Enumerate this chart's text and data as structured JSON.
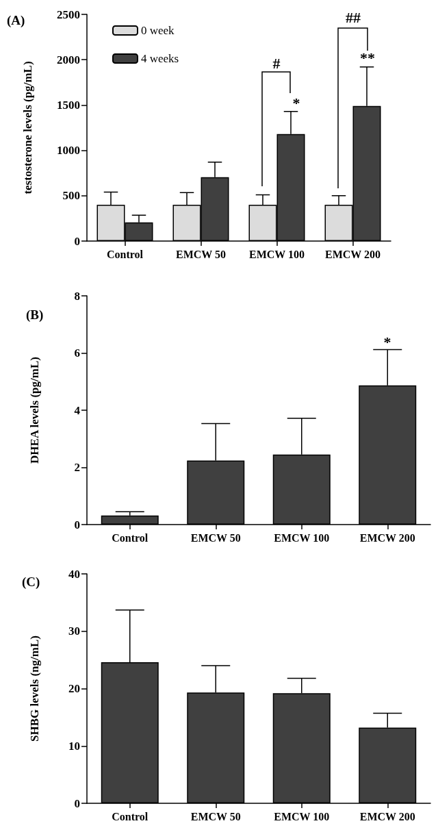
{
  "chart_data": [
    {
      "type": "bar",
      "ylabel": "testosterone levels (pg/mL)",
      "categories": [
        "Control",
        "EMCW 50",
        "EMCW 100",
        "EMCW 200"
      ],
      "series": [
        {
          "name": "0 week",
          "color": "#dcdcdc",
          "values": [
            400,
            400,
            400,
            400
          ],
          "errors": [
            140,
            135,
            110,
            100
          ]
        },
        {
          "name": "4 weeks",
          "color": "#404040",
          "values": [
            205,
            705,
            1180,
            1490
          ],
          "errors": [
            80,
            165,
            250,
            430
          ]
        }
      ],
      "ylim": [
        0,
        2500
      ],
      "yticks": [
        0,
        500,
        1000,
        1500,
        2000,
        2500
      ],
      "grid": false,
      "legend": "top left",
      "annotations": [
        "(A)",
        "#",
        "*",
        "##",
        "**"
      ]
    },
    {
      "type": "bar",
      "ylabel": "DHEA levels (pg/mL)",
      "categories": [
        "Control",
        "EMCW 50",
        "EMCW 100",
        "EMCW 200"
      ],
      "values": [
        0.32,
        2.24,
        2.45,
        4.87
      ],
      "errors": [
        0.13,
        1.29,
        1.27,
        1.25
      ],
      "color": "#404040",
      "ylim": [
        0,
        8
      ],
      "yticks": [
        0,
        2,
        4,
        6,
        8
      ],
      "grid": false,
      "annotations": [
        "(B)",
        "*"
      ]
    },
    {
      "type": "bar",
      "ylabel": "SHBG levels (ng/mL)",
      "categories": [
        "Control",
        "EMCW 50",
        "EMCW 100",
        "EMCW 200"
      ],
      "values": [
        24.6,
        19.3,
        19.2,
        13.2
      ],
      "errors": [
        9.1,
        4.7,
        2.6,
        2.5
      ],
      "color": "#404040",
      "ylim": [
        0,
        40
      ],
      "yticks": [
        0,
        10,
        20,
        30,
        40
      ],
      "grid": false,
      "annotations": [
        "(C)"
      ]
    }
  ]
}
